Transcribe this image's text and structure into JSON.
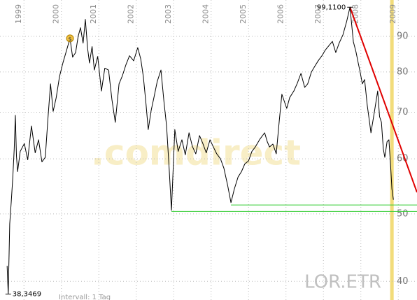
{
  "chart_data": {
    "type": "line",
    "watermark": ".comdirect",
    "symbol": "LOR.ETR",
    "footer": "Intervall: 1 Tag",
    "xlim": [
      1998.36,
      2009.5
    ],
    "ylim": [
      37.6,
      101.5
    ],
    "log_y": true,
    "grid": true,
    "xticks": [
      1999,
      2000,
      2001,
      2002,
      2003,
      2004,
      2005,
      2006,
      2007,
      2008,
      2009
    ],
    "yticks": [
      40,
      50,
      60,
      70,
      80,
      90
    ],
    "highlight_x": 2008.83,
    "highlight_color": "#f2dc7a",
    "x": [
      1998.55,
      1998.58,
      1998.62,
      1998.66,
      1998.7,
      1998.74,
      1998.77,
      1998.8,
      1998.83,
      1998.9,
      1999.01,
      1999.1,
      1999.2,
      1999.3,
      1999.39,
      1999.48,
      1999.57,
      1999.64,
      1999.71,
      1999.78,
      1999.86,
      1999.95,
      2000.04,
      2000.14,
      2000.23,
      2000.3,
      2000.38,
      2000.45,
      2000.51,
      2000.58,
      2000.64,
      2000.7,
      2000.75,
      2000.82,
      2000.88,
      2000.97,
      2001.07,
      2001.16,
      2001.26,
      2001.35,
      2001.44,
      2001.54,
      2001.63,
      2001.72,
      2001.82,
      2001.93,
      2002.04,
      2002.12,
      2002.19,
      2002.26,
      2002.32,
      2002.4,
      2002.47,
      2002.56,
      2002.66,
      2002.74,
      2002.81,
      2002.88,
      2002.94,
      2003.03,
      2003.12,
      2003.22,
      2003.31,
      2003.41,
      2003.5,
      2003.59,
      2003.69,
      2003.78,
      2003.87,
      2003.97,
      2004.06,
      2004.15,
      2004.25,
      2004.34,
      2004.44,
      2004.53,
      2004.62,
      2004.72,
      2004.81,
      2004.9,
      2005.0,
      2005.09,
      2005.18,
      2005.3,
      2005.43,
      2005.5,
      2005.56,
      2005.65,
      2005.74,
      2005.82,
      2005.89,
      2006.02,
      2006.1,
      2006.21,
      2006.3,
      2006.4,
      2006.5,
      2006.58,
      2006.68,
      2006.77,
      2006.86,
      2006.96,
      2007.05,
      2007.15,
      2007.24,
      2007.33,
      2007.42,
      2007.52,
      2007.62,
      2007.71,
      2007.76,
      2007.8,
      2007.87,
      2007.93,
      2007.98,
      2008.04,
      2008.1,
      2008.17,
      2008.22,
      2008.27,
      2008.36,
      2008.45,
      2008.5,
      2008.55,
      2008.6,
      2008.64,
      2008.7,
      2008.75,
      2008.8,
      2008.83,
      2008.87
    ],
    "series": [
      {
        "name": "LOR.ETR",
        "color": "#000000",
        "values": [
          42.1,
          38.35,
          48.4,
          52.0,
          56.2,
          62.0,
          69.3,
          60.5,
          57.5,
          61.5,
          63.1,
          59.8,
          66.9,
          61.2,
          63.9,
          59.4,
          60.3,
          68.5,
          76.9,
          70.2,
          73.4,
          78.8,
          82.4,
          86.0,
          89.4,
          84.0,
          85.3,
          90.1,
          92.6,
          88.0,
          95.2,
          86.5,
          82.4,
          87.0,
          80.5,
          84.2,
          75.1,
          81.0,
          80.5,
          73.0,
          67.7,
          76.9,
          79.0,
          81.8,
          84.4,
          83.0,
          86.7,
          83.5,
          78.7,
          72.0,
          66.1,
          70.5,
          73.4,
          77.5,
          80.5,
          72.5,
          66.9,
          58.0,
          50.6,
          66.1,
          61.5,
          63.9,
          60.8,
          65.4,
          62.5,
          61.0,
          64.8,
          63.1,
          61.2,
          63.9,
          62.4,
          61.0,
          60.0,
          58.2,
          55.0,
          51.9,
          54.3,
          56.5,
          57.5,
          59.0,
          59.6,
          61.5,
          62.4,
          64.0,
          65.4,
          63.5,
          62.4,
          63.0,
          61.0,
          68.0,
          74.3,
          70.9,
          73.5,
          75.1,
          77.0,
          79.6,
          76.0,
          76.9,
          80.0,
          81.5,
          83.0,
          84.4,
          86.0,
          87.3,
          88.5,
          85.3,
          88.0,
          90.4,
          94.5,
          99.11,
          93.0,
          88.4,
          85.5,
          82.4,
          80.0,
          76.9,
          78.0,
          71.7,
          68.5,
          65.4,
          70.0,
          75.1,
          69.0,
          67.7,
          62.0,
          60.3,
          63.5,
          63.9,
          58.0,
          54.3,
          52.4
        ]
      }
    ],
    "trend_lines": [
      {
        "color": "#e00000",
        "x": [
          2007.71,
          2009.5
        ],
        "y": [
          99.11,
          53.7
        ]
      },
      {
        "color": "#33cc33",
        "x": [
          2002.94,
          2009.5
        ],
        "y": [
          50.4,
          50.4
        ]
      },
      {
        "color": "#33cc33",
        "x": [
          2004.53,
          2009.5
        ],
        "y": [
          51.5,
          51.5
        ]
      }
    ],
    "annotations": [
      {
        "label": "99,1100",
        "x": 2007.71,
        "y": 99.11
      },
      {
        "label": "38,3469",
        "x": 1998.58,
        "y": 38.3469
      }
    ],
    "markers": [
      {
        "label": "$",
        "x": 2000.23,
        "y": 89.4,
        "color": "#f0c040"
      }
    ]
  }
}
